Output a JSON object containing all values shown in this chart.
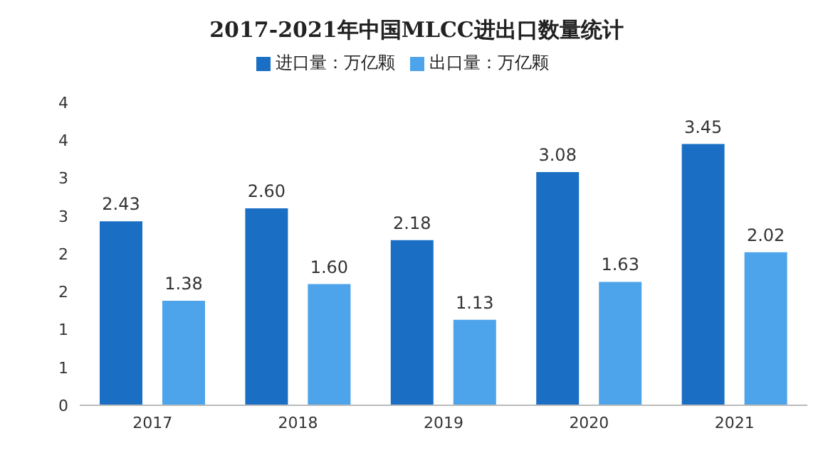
{
  "chart_data": {
    "type": "bar",
    "title": "2017-2021年中国MLCC进出口数量统计",
    "categories": [
      "2017",
      "2018",
      "2019",
      "2020",
      "2021"
    ],
    "series": [
      {
        "name": "进口量：万亿颗",
        "color": "#1a6fc4",
        "values": [
          2.43,
          2.6,
          2.18,
          3.08,
          3.45
        ],
        "value_labels": [
          "2.43",
          "2.60",
          "2.18",
          "3.08",
          "3.45"
        ]
      },
      {
        "name": "出口量：万亿颗",
        "color": "#4ea4ea",
        "values": [
          1.38,
          1.6,
          1.13,
          1.63,
          2.02
        ],
        "value_labels": [
          "1.38",
          "1.60",
          "1.13",
          "1.63",
          "2.02"
        ]
      }
    ],
    "ylim": [
      0,
      4
    ],
    "yticks": [
      0,
      {
        "value": 0.5,
        "label": "1"
      },
      1,
      {
        "value": 1.5,
        "label": "2"
      },
      2,
      {
        "value": 2.5,
        "label": "3"
      },
      3,
      {
        "value": 3.5,
        "label": "4"
      },
      4
    ],
    "legend": "top",
    "grid": false
  }
}
